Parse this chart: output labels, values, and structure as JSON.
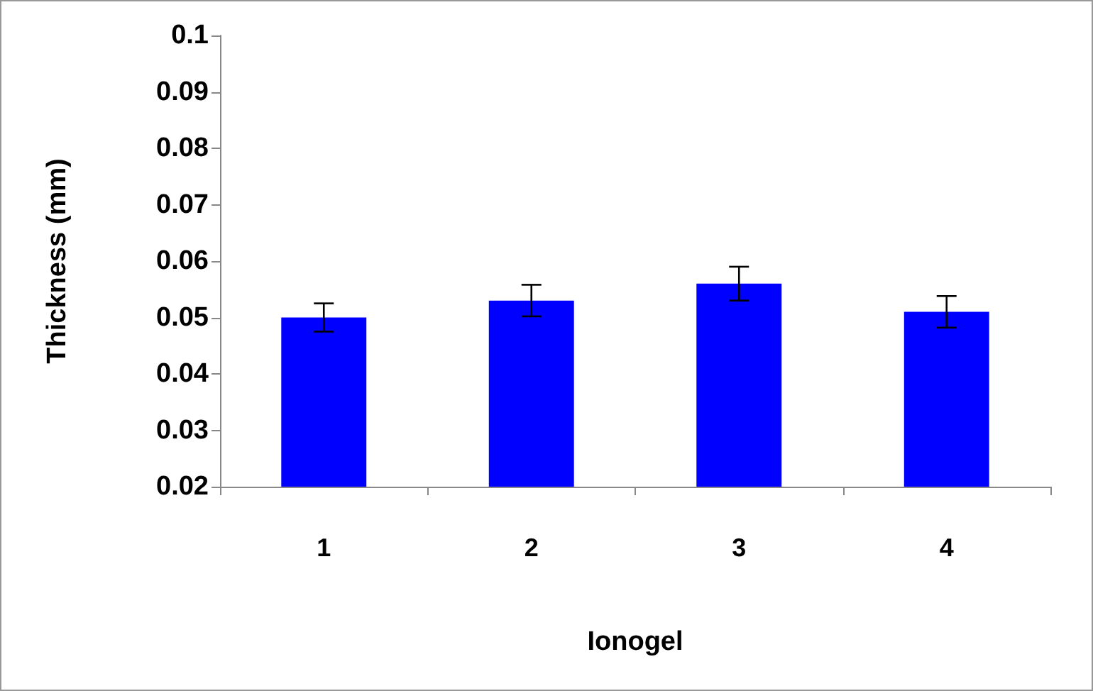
{
  "chart_data": {
    "type": "bar",
    "xlabel": "Ionogel",
    "ylabel": "Thickness (mm)",
    "categories": [
      "1",
      "2",
      "3",
      "4"
    ],
    "values": [
      0.05,
      0.053,
      0.056,
      0.051
    ],
    "errors": [
      0.0025,
      0.0028,
      0.003,
      0.0028
    ],
    "color": "#0000ff",
    "ylim": [
      0.02,
      0.1
    ],
    "yticks": [
      0.02,
      0.03,
      0.04,
      0.05,
      0.06,
      0.07,
      0.08,
      0.09,
      0.1
    ],
    "grid": false
  }
}
